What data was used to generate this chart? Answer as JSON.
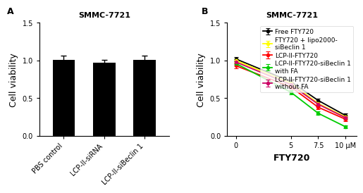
{
  "panel_A": {
    "title": "SMMC-7721",
    "label": "A",
    "categories": [
      "PBS control",
      "LCP-II-siRNA",
      "LCP-II-siBeclin 1"
    ],
    "values": [
      1.01,
      0.97,
      1.01
    ],
    "errors": [
      0.05,
      0.04,
      0.055
    ],
    "bar_color": "#000000",
    "ylabel": "Cell viability",
    "ylim": [
      0.0,
      1.5
    ],
    "yticks": [
      0.0,
      0.5,
      1.0,
      1.5
    ]
  },
  "panel_B": {
    "title": "SMMC-7721",
    "label": "B",
    "xlabel": "FTY720",
    "ylabel": "Cell viability",
    "ylim": [
      0.0,
      1.5
    ],
    "yticks": [
      0.0,
      0.5,
      1.0,
      1.5
    ],
    "x": [
      0,
      5,
      7.5,
      10
    ],
    "xticks": [
      0,
      5,
      7.5,
      10
    ],
    "xticklabels": [
      "0",
      "5",
      "7.5",
      "10 μM"
    ],
    "series": [
      {
        "name": "Free FTY720",
        "color": "#000000",
        "values": [
          1.02,
          0.72,
          0.47,
          0.27
        ],
        "errors": [
          0.03,
          0.025,
          0.025,
          0.025
        ]
      },
      {
        "name": "FTY720 + lipo2000-\nsiBeclin 1",
        "color": "#ffff00",
        "values": [
          1.0,
          0.7,
          0.43,
          0.25
        ],
        "errors": [
          0.03,
          0.025,
          0.025,
          0.025
        ]
      },
      {
        "name": "LCP-II-FTY720",
        "color": "#ff0000",
        "values": [
          0.93,
          0.65,
          0.38,
          0.22
        ],
        "errors": [
          0.03,
          0.025,
          0.025,
          0.02
        ]
      },
      {
        "name": "LCP-II-FTY720-siBeclin 1\nwith FA",
        "color": "#00cc00",
        "values": [
          0.96,
          0.58,
          0.3,
          0.12
        ],
        "errors": [
          0.03,
          0.025,
          0.025,
          0.02
        ]
      },
      {
        "name": "LCP-II-FTY720-siBeclin 1\nwithout FA",
        "color": "#cc0066",
        "values": [
          0.98,
          0.68,
          0.42,
          0.24
        ],
        "errors": [
          0.03,
          0.025,
          0.025,
          0.025
        ]
      }
    ]
  },
  "title_fontsize": 8,
  "label_fontsize": 9,
  "tick_fontsize": 7,
  "legend_fontsize": 6.5
}
